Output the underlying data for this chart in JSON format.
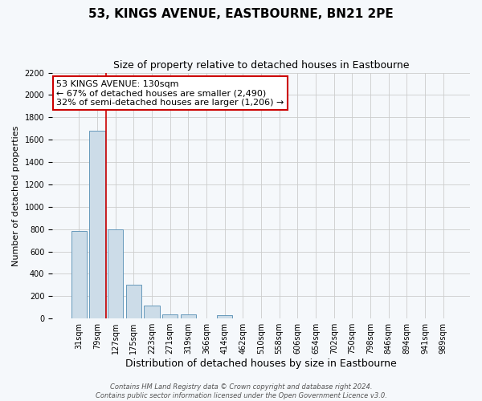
{
  "title": "53, KINGS AVENUE, EASTBOURNE, BN21 2PE",
  "subtitle": "Size of property relative to detached houses in Eastbourne",
  "xlabel": "Distribution of detached houses by size in Eastbourne",
  "ylabel": "Number of detached properties",
  "bar_labels": [
    "31sqm",
    "79sqm",
    "127sqm",
    "175sqm",
    "223sqm",
    "271sqm",
    "319sqm",
    "366sqm",
    "414sqm",
    "462sqm",
    "510sqm",
    "558sqm",
    "606sqm",
    "654sqm",
    "702sqm",
    "750sqm",
    "798sqm",
    "846sqm",
    "894sqm",
    "941sqm",
    "989sqm"
  ],
  "bar_values": [
    780,
    1680,
    800,
    300,
    115,
    35,
    35,
    0,
    30,
    0,
    0,
    0,
    0,
    0,
    0,
    0,
    0,
    0,
    0,
    0,
    0
  ],
  "bar_color": "#ccdce8",
  "bar_edge_color": "#6699bb",
  "property_line_idx": 2,
  "property_line_color": "#cc0000",
  "ylim": [
    0,
    2200
  ],
  "yticks": [
    0,
    200,
    400,
    600,
    800,
    1000,
    1200,
    1400,
    1600,
    1800,
    2000,
    2200
  ],
  "annotation_title": "53 KINGS AVENUE: 130sqm",
  "annotation_line1": "← 67% of detached houses are smaller (2,490)",
  "annotation_line2": "32% of semi-detached houses are larger (1,206) →",
  "annotation_box_facecolor": "#ffffff",
  "annotation_box_edgecolor": "#cc0000",
  "grid_color": "#cccccc",
  "plot_bg_color": "#f5f8fb",
  "fig_bg_color": "#f5f8fb",
  "footer_line1": "Contains HM Land Registry data © Crown copyright and database right 2024.",
  "footer_line2": "Contains public sector information licensed under the Open Government Licence v3.0.",
  "title_fontsize": 11,
  "subtitle_fontsize": 9,
  "xlabel_fontsize": 9,
  "ylabel_fontsize": 8,
  "tick_fontsize": 7,
  "annotation_fontsize": 8,
  "footer_fontsize": 6
}
